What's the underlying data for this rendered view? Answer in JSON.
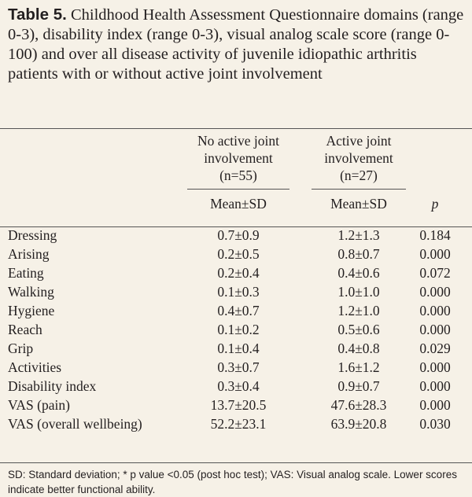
{
  "title": {
    "label": "Table 5.",
    "text": "Childhood Health Assessment Questionnaire domains (range 0-3), disability index (range 0-3), visual analog scale score (range 0-100) and over all disease activity of juvenile idiopathic arthritis patients with or without active joint involvement"
  },
  "table": {
    "group_headers": [
      "No active joint involvement (n=55)",
      "Active joint involvement (n=27)"
    ],
    "columns": [
      "Mean±SD",
      "Mean±SD",
      "p"
    ],
    "rows": [
      [
        "Dressing",
        "0.7±0.9",
        "1.2±1.3",
        "0.184"
      ],
      [
        "Arising",
        "0.2±0.5",
        "0.8±0.7",
        "0.000"
      ],
      [
        "Eating",
        "0.2±0.4",
        "0.4±0.6",
        "0.072"
      ],
      [
        "Walking",
        "0.1±0.3",
        "1.0±1.0",
        "0.000"
      ],
      [
        "Hygiene",
        "0.4±0.7",
        "1.2±1.0",
        "0.000"
      ],
      [
        "Reach",
        "0.1±0.2",
        "0.5±0.6",
        "0.000"
      ],
      [
        "Grip",
        "0.1±0.4",
        "0.4±0.8",
        "0.029"
      ],
      [
        "Activities",
        "0.3±0.7",
        "1.6±1.2",
        "0.000"
      ],
      [
        "Disability index",
        "0.3±0.4",
        "0.9±0.7",
        "0.000"
      ],
      [
        "VAS (pain)",
        "13.7±20.5",
        "47.6±28.3",
        "0.000"
      ],
      [
        "VAS (overall wellbeing)",
        "52.2±23.1",
        "63.9±20.8",
        "0.030"
      ]
    ]
  },
  "footnote": "SD: Standard deviation; * p value <0.05 (post hoc test); VAS: Visual analog scale. Lower scores indicate better functional ability."
}
